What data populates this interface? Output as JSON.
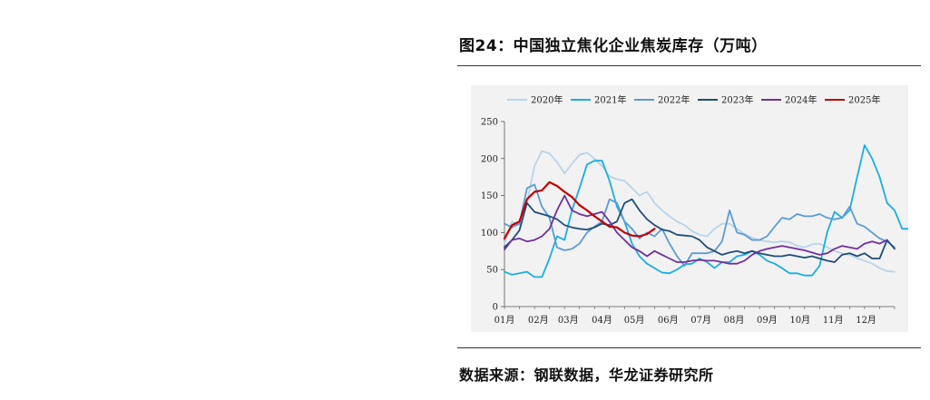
{
  "figure": {
    "title": "图24：中国独立焦化企业焦炭库存（万吨）",
    "source": "数据来源：钢联数据，华龙证券研究所"
  },
  "chart_data": {
    "type": "line",
    "title": "图24：中国独立焦化企业焦炭库存（万吨）",
    "xlabel": "",
    "ylabel": "",
    "ylim": [
      0,
      250
    ],
    "yticks": [
      0,
      50,
      100,
      150,
      200,
      250
    ],
    "x_range": [
      1,
      53
    ],
    "xticks": [
      {
        "week": 1,
        "label": "01月"
      },
      {
        "week": 5.5,
        "label": "02月"
      },
      {
        "week": 9.5,
        "label": "03月"
      },
      {
        "week": 14,
        "label": "04月"
      },
      {
        "week": 18.3,
        "label": "05月"
      },
      {
        "week": 22.8,
        "label": "06月"
      },
      {
        "week": 27.2,
        "label": "07月"
      },
      {
        "week": 31.6,
        "label": "08月"
      },
      {
        "week": 36,
        "label": "09月"
      },
      {
        "week": 40.4,
        "label": "10月"
      },
      {
        "week": 44.8,
        "label": "11月"
      },
      {
        "week": 49.2,
        "label": "12月"
      }
    ],
    "grid": false,
    "legend_position": "top",
    "series": [
      {
        "name": "2020年",
        "color": "#b8d4ea",
        "values": [
          85,
          115,
          110,
          140,
          190,
          210,
          207,
          195,
          180,
          193,
          205,
          208,
          200,
          190,
          176,
          172,
          170,
          160,
          150,
          155,
          140,
          130,
          122,
          115,
          110,
          102,
          97,
          95,
          105,
          112,
          112,
          105,
          98,
          93,
          90,
          88,
          87,
          88,
          87,
          82,
          80,
          84,
          85,
          80,
          75,
          72,
          70,
          65,
          62,
          58,
          52,
          48,
          47
        ]
      },
      {
        "name": "2021年",
        "color": "#1aaee5",
        "values": [
          47,
          43,
          45,
          47,
          40,
          40,
          65,
          95,
          90,
          130,
          160,
          192,
          197,
          197,
          170,
          135,
          115,
          85,
          68,
          58,
          52,
          46,
          45,
          50,
          57,
          58,
          65,
          60,
          52,
          60,
          60,
          68,
          70,
          75,
          70,
          62,
          58,
          52,
          45,
          45,
          42,
          42,
          55,
          100,
          128,
          120,
          130,
          175,
          218,
          200,
          175,
          140,
          130,
          105,
          105
        ]
      },
      {
        "name": "2022年",
        "color": "#5b9bd5",
        "values": [
          112,
          107,
          112,
          160,
          165,
          135,
          120,
          80,
          76,
          78,
          85,
          100,
          108,
          115,
          145,
          140,
          115,
          105,
          92,
          100,
          95,
          105,
          85,
          68,
          55,
          72,
          72,
          72,
          75,
          88,
          130,
          100,
          97,
          90,
          90,
          95,
          108,
          120,
          118,
          125,
          122,
          122,
          125,
          120,
          118,
          120,
          135,
          112,
          108,
          100,
          92,
          88,
          80
        ]
      },
      {
        "name": "2023年",
        "color": "#1f4e79",
        "values": [
          80,
          90,
          103,
          140,
          128,
          125,
          122,
          118,
          110,
          107,
          105,
          104,
          107,
          112,
          110,
          115,
          140,
          145,
          130,
          118,
          110,
          104,
          102,
          97,
          96,
          95,
          90,
          80,
          75,
          70,
          73,
          75,
          72,
          75,
          72,
          70,
          68,
          68,
          70,
          68,
          66,
          68,
          65,
          62,
          60,
          70,
          72,
          68,
          72,
          65,
          65,
          90,
          78
        ]
      },
      {
        "name": "2024年",
        "color": "#7030a0",
        "values": [
          77,
          90,
          92,
          88,
          90,
          95,
          105,
          130,
          150,
          130,
          125,
          122,
          125,
          128,
          115,
          100,
          90,
          80,
          75,
          68,
          75,
          70,
          65,
          60,
          60,
          62,
          63,
          62,
          62,
          60,
          58,
          58,
          62,
          70,
          75,
          78,
          80,
          82,
          80,
          78,
          76,
          73,
          70,
          72,
          78,
          82,
          80,
          78,
          85,
          88,
          85,
          90
        ]
      },
      {
        "name": "2025年",
        "color": "#c00000",
        "values": [
          92,
          110,
          115,
          145,
          155,
          157,
          168,
          163,
          155,
          148,
          137,
          130,
          122,
          115,
          108,
          107,
          100,
          96,
          95,
          98,
          105
        ]
      }
    ]
  }
}
